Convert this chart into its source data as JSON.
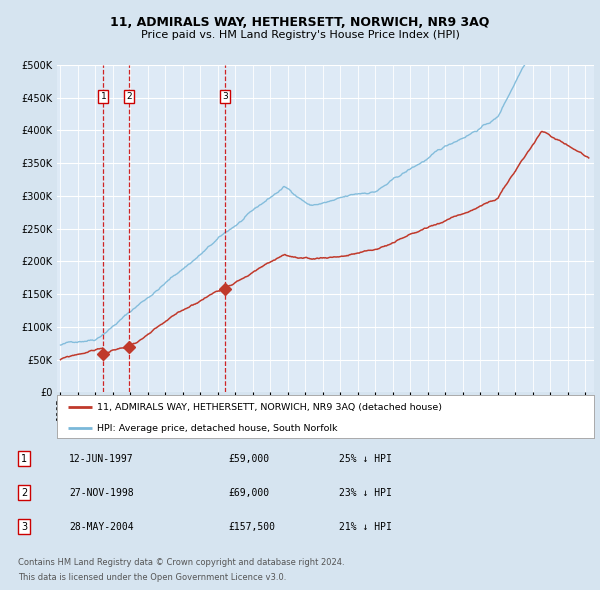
{
  "title": "11, ADMIRALS WAY, HETHERSETT, NORWICH, NR9 3AQ",
  "subtitle": "Price paid vs. HM Land Registry's House Price Index (HPI)",
  "bg_color": "#d6e4f0",
  "plot_bg_color": "#deeaf6",
  "grid_color": "#ffffff",
  "hpi_color": "#7ab8d9",
  "price_color": "#c0392b",
  "transactions": [
    {
      "num": 1,
      "date_label": "12-JUN-1997",
      "price": 59000,
      "pct": "25%",
      "x_year": 1997.45
    },
    {
      "num": 2,
      "date_label": "27-NOV-1998",
      "price": 69000,
      "pct": "23%",
      "x_year": 1998.91
    },
    {
      "num": 3,
      "date_label": "28-MAY-2004",
      "price": 157500,
      "pct": "21%",
      "x_year": 2004.41
    }
  ],
  "legend_line1": "11, ADMIRALS WAY, HETHERSETT, NORWICH, NR9 3AQ (detached house)",
  "legend_line2": "HPI: Average price, detached house, South Norfolk",
  "footnote1": "Contains HM Land Registry data © Crown copyright and database right 2024.",
  "footnote2": "This data is licensed under the Open Government Licence v3.0.",
  "ylim": [
    0,
    500000
  ],
  "yticks": [
    0,
    50000,
    100000,
    150000,
    200000,
    250000,
    300000,
    350000,
    400000,
    450000,
    500000
  ],
  "xlim_start": 1994.8,
  "xlim_end": 2025.5
}
